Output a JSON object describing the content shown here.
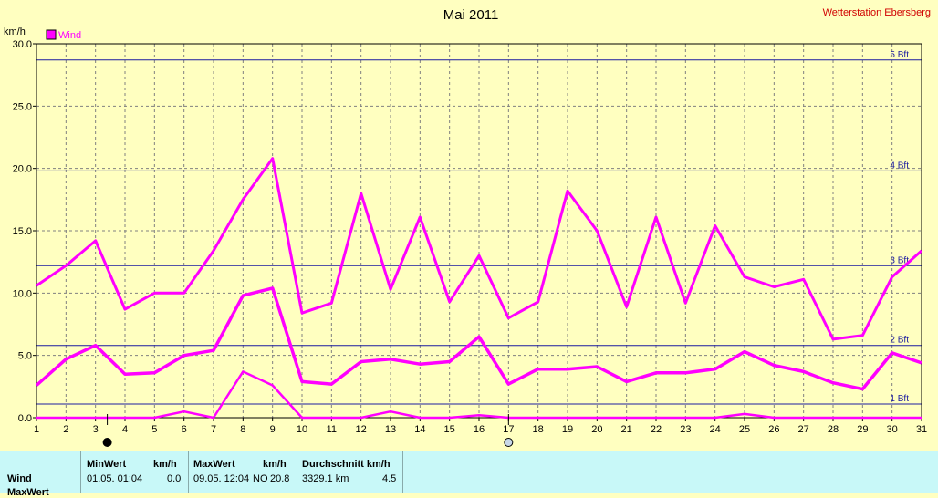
{
  "header": {
    "title": "Mai 2011",
    "station": "Wetterstation Ebersberg",
    "unit": "km/h",
    "legend_label": "Wind"
  },
  "colors": {
    "background": "#ffffc0",
    "series": "#ff00ff",
    "bft_line": "#1c1ca0",
    "grid": "#808080",
    "station_text": "#d00000",
    "table_bg": "#c8f8f8"
  },
  "chart_data": {
    "type": "line",
    "title": "Mai 2011",
    "ylabel": "km/h",
    "xlim": [
      1,
      31
    ],
    "ylim": [
      0,
      30
    ],
    "x_ticks": [
      "1",
      "2",
      "3",
      "4",
      "5",
      "6",
      "7",
      "8",
      "9",
      "10",
      "11",
      "12",
      "13",
      "14",
      "15",
      "16",
      "17",
      "18",
      "19",
      "20",
      "21",
      "22",
      "23",
      "24",
      "25",
      "26",
      "27",
      "28",
      "29",
      "30",
      "31"
    ],
    "y_ticks": [
      "0.0",
      "5.0",
      "10.0",
      "15.0",
      "20.0",
      "25.0",
      "30.0"
    ],
    "grid": true,
    "legend": {
      "position": "top-left",
      "entries": [
        "Wind"
      ]
    },
    "x": [
      1,
      2,
      3,
      4,
      5,
      6,
      7,
      8,
      9,
      10,
      11,
      12,
      13,
      14,
      15,
      16,
      17,
      18,
      19,
      20,
      21,
      22,
      23,
      24,
      25,
      26,
      27,
      28,
      29,
      30,
      31
    ],
    "series": [
      {
        "name": "Wind",
        "role": "max",
        "values": [
          10.6,
          12.2,
          14.2,
          8.7,
          10.0,
          10.0,
          13.4,
          17.5,
          20.8,
          8.4,
          9.2,
          18.0,
          10.3,
          16.1,
          9.3,
          13.0,
          8.0,
          9.3,
          18.2,
          15.0,
          8.9,
          16.1,
          9.2,
          15.4,
          11.3,
          10.5,
          11.1,
          6.3,
          6.6,
          11.3,
          13.4
        ]
      },
      {
        "name": "Wind",
        "role": "average",
        "values": [
          2.6,
          4.7,
          5.8,
          3.5,
          3.6,
          5.0,
          5.4,
          9.8,
          10.4,
          2.9,
          2.7,
          4.5,
          4.7,
          4.3,
          4.5,
          6.5,
          2.7,
          3.9,
          3.9,
          4.1,
          2.9,
          3.6,
          3.6,
          3.9,
          5.3,
          4.2,
          3.7,
          2.8,
          2.3,
          5.2,
          4.4
        ]
      },
      {
        "name": "Wind",
        "role": "min",
        "values": [
          0,
          0,
          0,
          0,
          0,
          0.5,
          0,
          3.7,
          2.6,
          0,
          0,
          0,
          0.5,
          0,
          0,
          0.2,
          0,
          0,
          0,
          0,
          0,
          0,
          0,
          0,
          0.3,
          0,
          0,
          0,
          0,
          0,
          0
        ]
      }
    ],
    "reference_lines": [
      {
        "label": "1 Bft",
        "value": 1.1
      },
      {
        "label": "2 Bft",
        "value": 5.8
      },
      {
        "label": "3 Bft",
        "value": 12.2
      },
      {
        "label": "4 Bft",
        "value": 19.8
      },
      {
        "label": "5 Bft",
        "value": 28.7
      }
    ],
    "moon_phases": [
      {
        "day": 3.4,
        "phase": "new-moon"
      },
      {
        "day": 17.0,
        "phase": "full-moon"
      }
    ]
  },
  "table": {
    "row_label": "Wind",
    "row2_label": "MaxWert",
    "min": {
      "header": "MinWert",
      "unit": "km/h",
      "datetime": "01.05.  01:04",
      "value": "0.0"
    },
    "max": {
      "header": "MaxWert",
      "unit": "km/h",
      "datetime": "09.05.  12:04",
      "direction": "NO",
      "value": "20.8"
    },
    "avg": {
      "header": "Durchschnitt km/h",
      "distance": "3329.1 km",
      "value": "4.5"
    }
  }
}
